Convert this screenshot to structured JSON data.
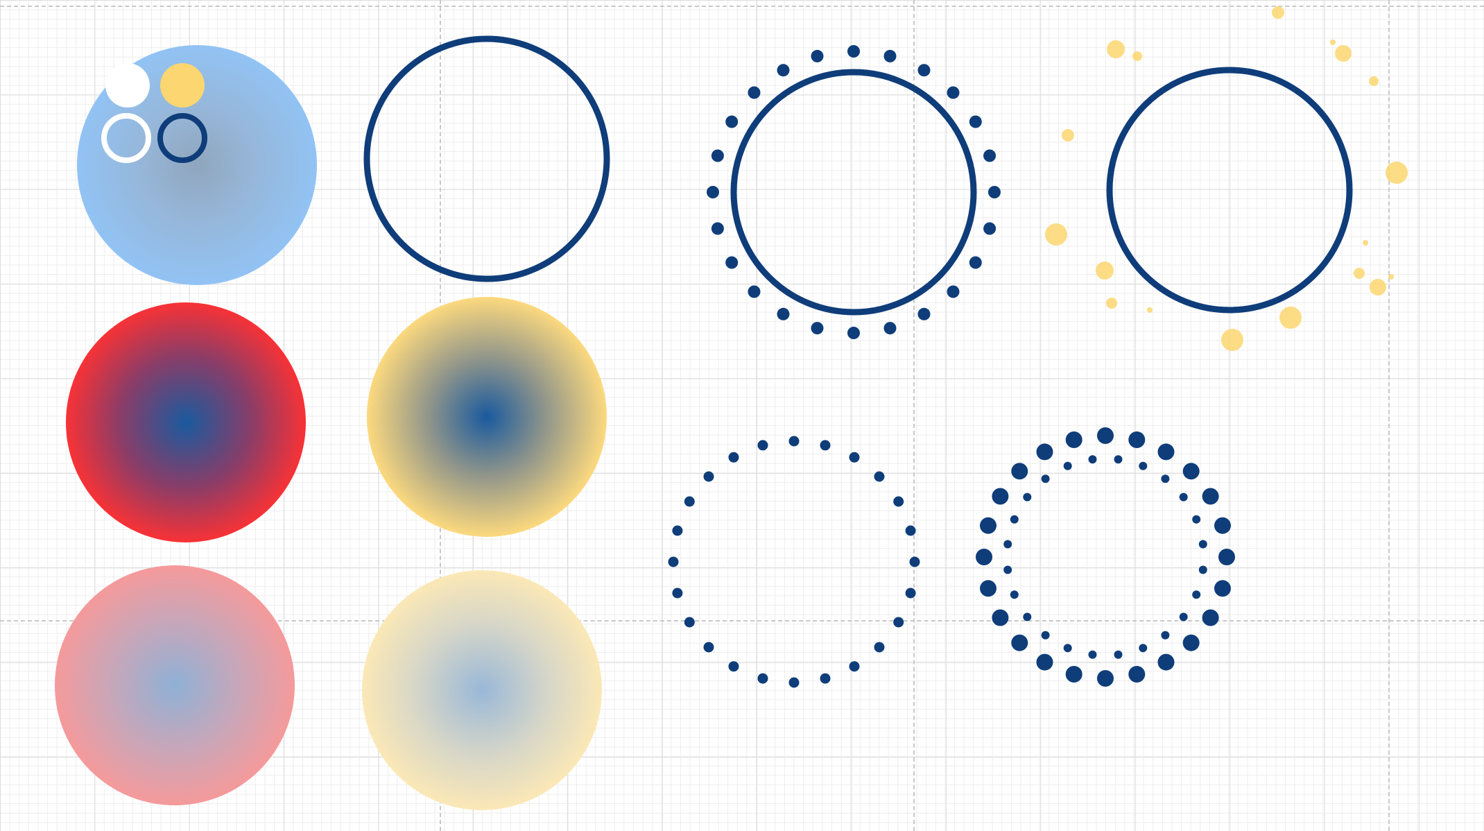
{
  "canvas": {
    "background": "#ffffff",
    "grid_major_color": "#dcdcdc",
    "grid_minor_color": "#ededed",
    "guide_color": "#c8c8c8"
  },
  "palette": {
    "navy": "#0f3d7a",
    "light_blue": "#92c3f4",
    "yellow": "#fcd670",
    "light_yellow": "#fbe8b4",
    "red": "#f83236",
    "light_red": "#f59a9b",
    "white": "#ffffff"
  },
  "swatches": [
    "white",
    "yellow",
    "white-ring",
    "navy-ring"
  ],
  "elements": [
    "light-blue-gradient-circle",
    "navy-ring-outline",
    "navy-ring-with-dot-halo",
    "navy-ring-with-yellow-splatter",
    "red-radial-gradient-circle",
    "yellow-radial-gradient-circle",
    "navy-dotted-circle",
    "navy-double-dotted-circle",
    "faded-red-radial-gradient-circle",
    "faded-yellow-radial-gradient-circle"
  ]
}
